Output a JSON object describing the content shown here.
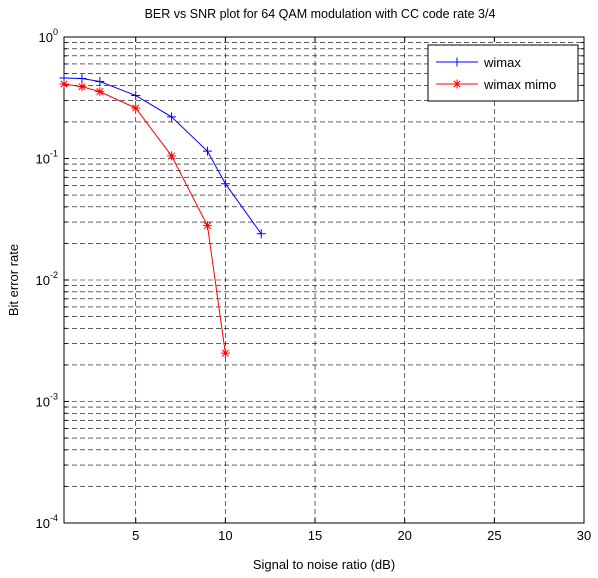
{
  "chart_data": {
    "type": "line",
    "title": "BER vs SNR plot for 64 QAM modulation with CC code rate 3/4",
    "xlabel": "Signal to noise ratio (dB)",
    "ylabel": "Bit error rate",
    "xlim": [
      1,
      30
    ],
    "ylim": [
      0.0001,
      1
    ],
    "yscale": "log",
    "grid": true,
    "legend_position": "top-right",
    "x_ticks": [
      {
        "value": 5,
        "label": "5"
      },
      {
        "value": 10,
        "label": "10"
      },
      {
        "value": 15,
        "label": "15"
      },
      {
        "value": 20,
        "label": "20"
      },
      {
        "value": 25,
        "label": "25"
      },
      {
        "value": 30,
        "label": "30"
      }
    ],
    "y_ticks": [
      {
        "value": 1,
        "base": "10",
        "exp": "0"
      },
      {
        "value": 0.1,
        "base": "10",
        "exp": "-1"
      },
      {
        "value": 0.01,
        "base": "10",
        "exp": "-2"
      },
      {
        "value": 0.001,
        "base": "10",
        "exp": "-3"
      },
      {
        "value": 0.0001,
        "base": "10",
        "exp": "-4"
      }
    ],
    "series": [
      {
        "name": "wimax",
        "color": "#0000ff",
        "marker": "+",
        "x": [
          1,
          2,
          3,
          5,
          7,
          9,
          10,
          12
        ],
        "y": [
          0.46,
          0.455,
          0.43,
          0.33,
          0.22,
          0.115,
          0.062,
          0.024
        ]
      },
      {
        "name": "wimax mimo",
        "color": "#ff0000",
        "marker": "*",
        "x": [
          1,
          2,
          3,
          5,
          7,
          9,
          10
        ],
        "y": [
          0.41,
          0.39,
          0.355,
          0.26,
          0.105,
          0.028,
          0.0025
        ]
      }
    ]
  }
}
